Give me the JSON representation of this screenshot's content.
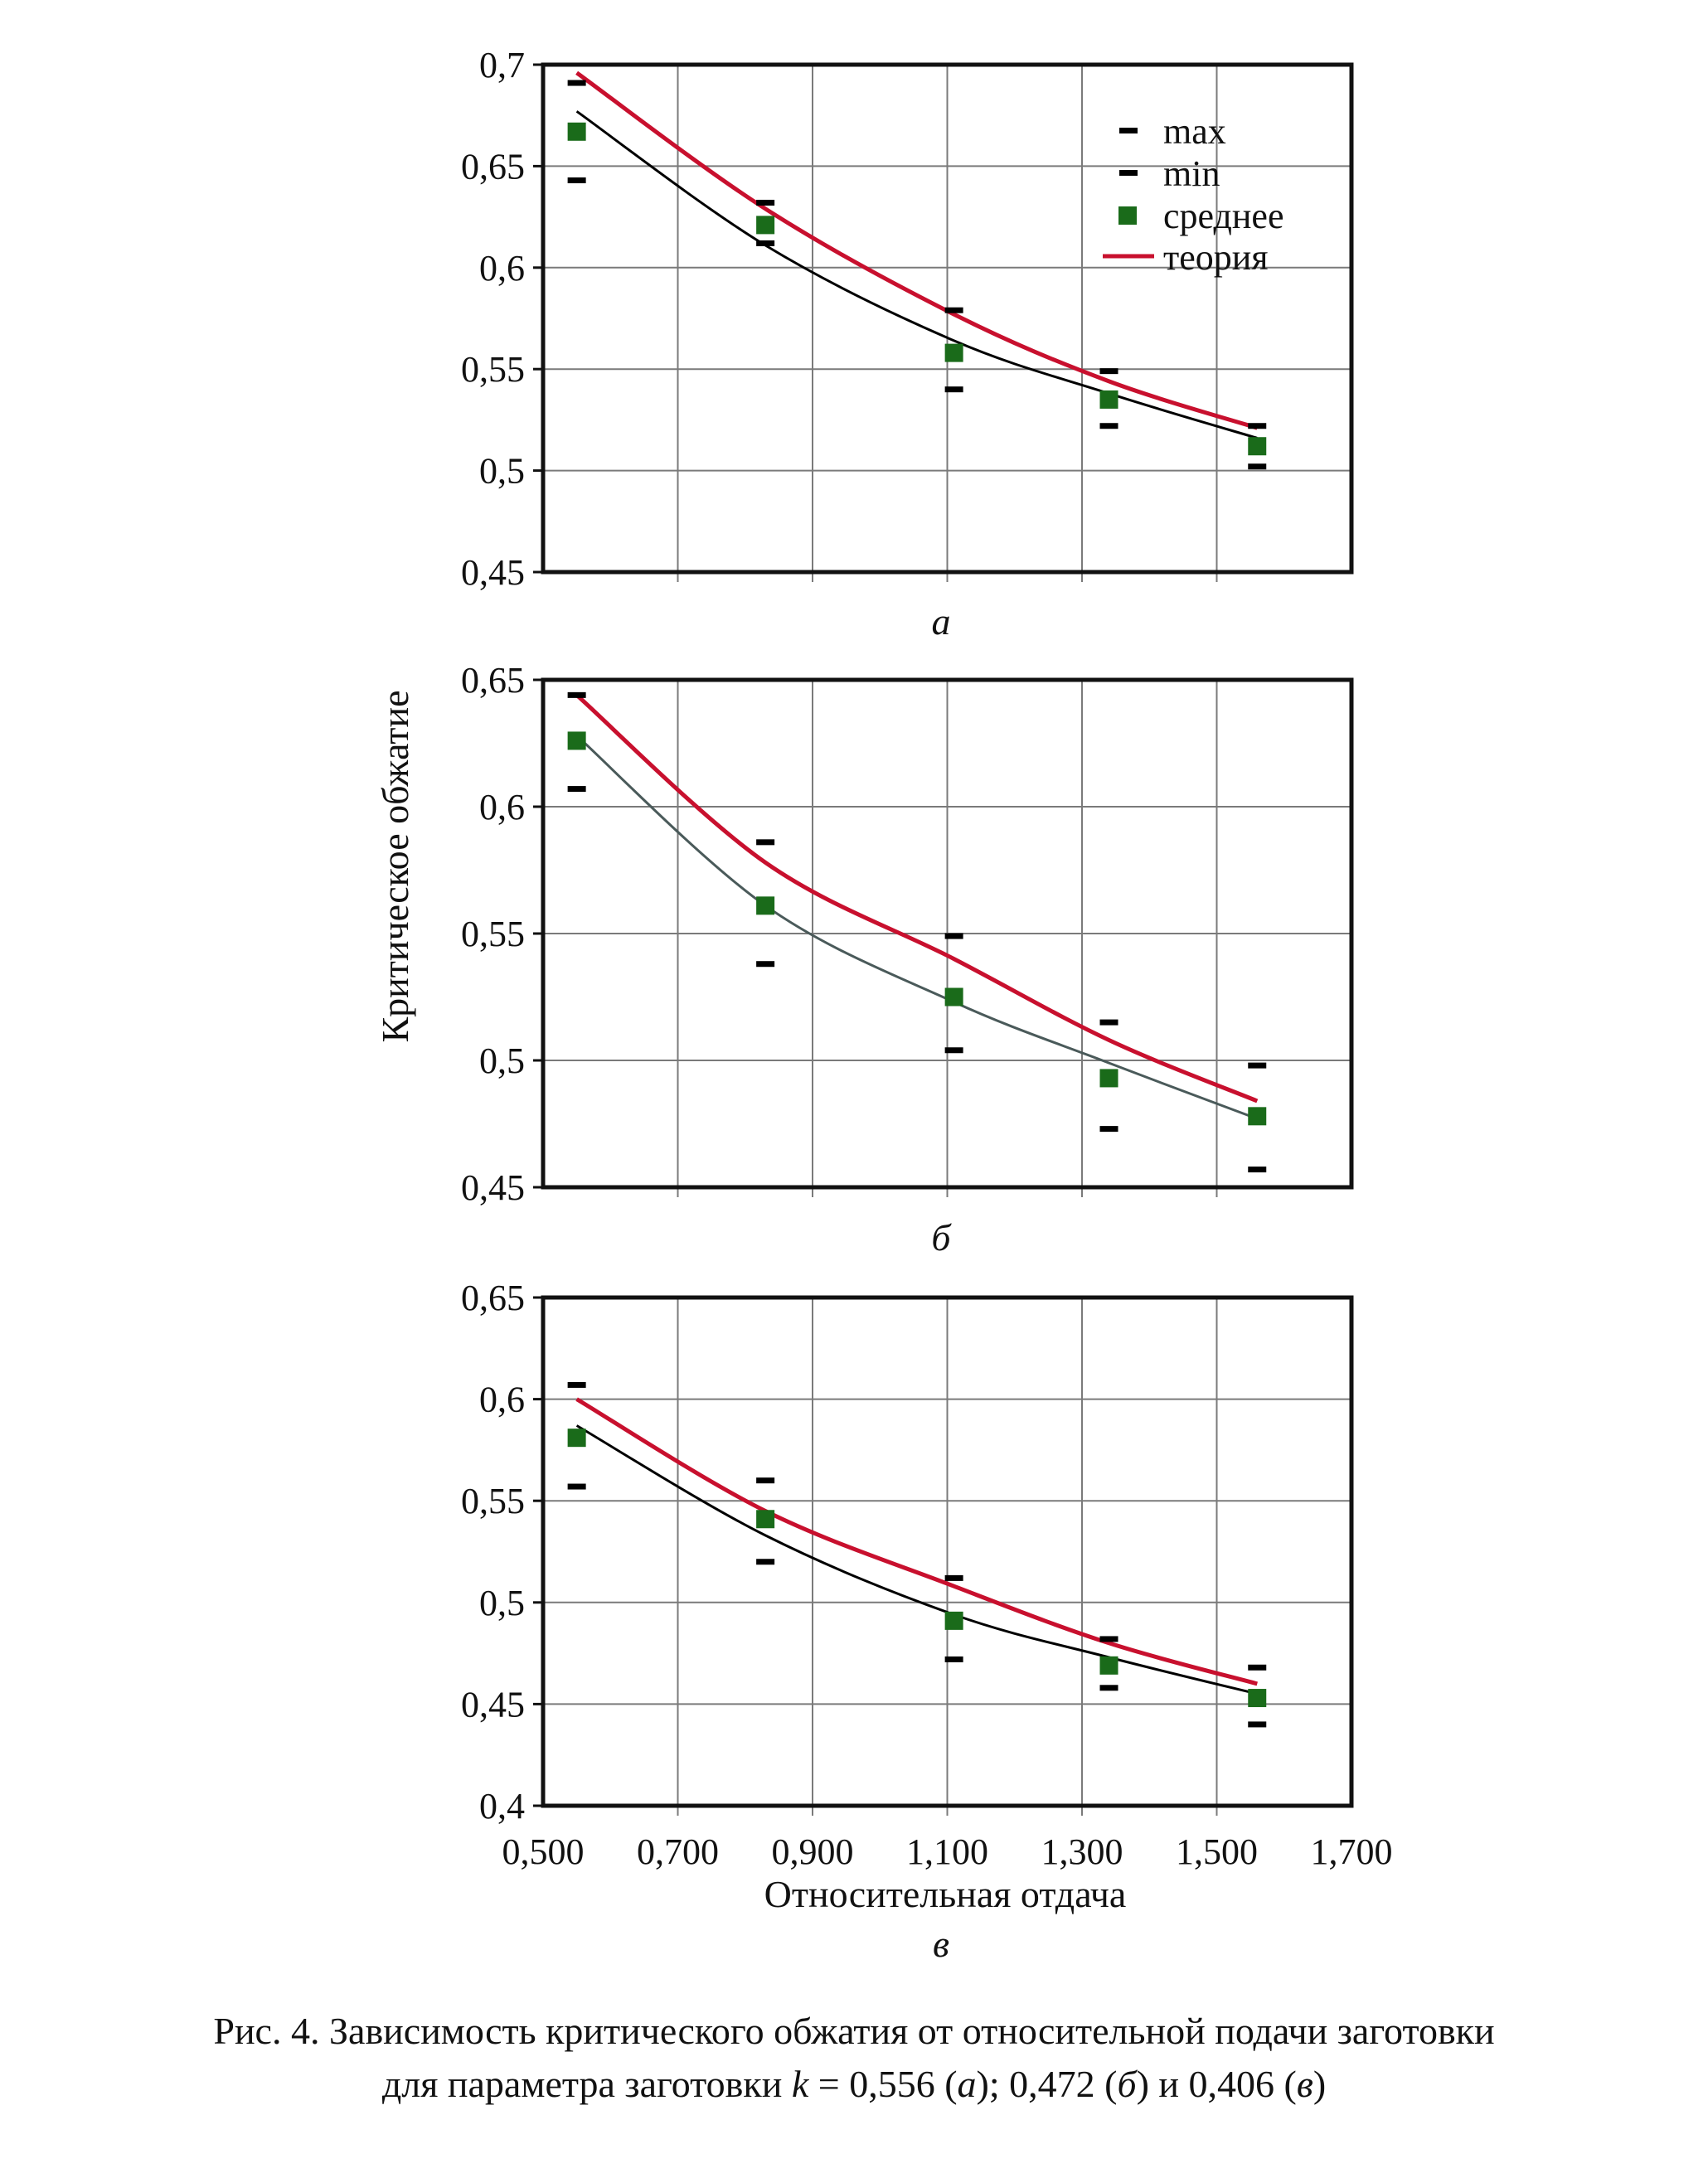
{
  "chart_data": [
    {
      "type": "scatter",
      "panel": "а",
      "x": [
        0.55,
        0.83,
        1.11,
        1.34,
        1.56
      ],
      "ylim": [
        0.45,
        0.7
      ],
      "yticks": [
        "0,45",
        "0,5",
        "0,55",
        "0,6",
        "0,65",
        "0,7"
      ],
      "xlim": [
        0.5,
        1.7
      ],
      "grid": true,
      "legend_position": "top-right",
      "series": [
        {
          "name": "max",
          "marker": "dash",
          "color": "#000000",
          "values": [
            0.691,
            0.632,
            0.579,
            0.549,
            0.522
          ]
        },
        {
          "name": "min",
          "marker": "dash",
          "color": "#000000",
          "values": [
            0.643,
            0.612,
            0.54,
            0.522,
            0.502
          ]
        },
        {
          "name": "среднее",
          "marker": "square",
          "color": "#1a6b1a",
          "values": [
            0.667,
            0.621,
            0.558,
            0.535,
            0.512
          ]
        },
        {
          "name": "теория",
          "marker": "line",
          "color": "#c8102e",
          "values": [
            0.696,
            0.629,
            0.577,
            0.544,
            0.521
          ]
        },
        {
          "name": "",
          "marker": "line",
          "color": "#000000",
          "values": [
            0.677,
            0.611,
            0.564,
            0.538,
            0.516
          ]
        }
      ]
    },
    {
      "type": "scatter",
      "panel": "б",
      "x": [
        0.55,
        0.83,
        1.11,
        1.34,
        1.56
      ],
      "ylim": [
        0.45,
        0.65
      ],
      "yticks": [
        "0,45",
        "0,5",
        "0,55",
        "0,6",
        "0,65"
      ],
      "xlim": [
        0.5,
        1.7
      ],
      "grid": true,
      "series": [
        {
          "name": "max",
          "marker": "dash",
          "color": "#000000",
          "values": [
            0.644,
            0.586,
            0.549,
            0.515,
            0.498
          ]
        },
        {
          "name": "min",
          "marker": "dash",
          "color": "#000000",
          "values": [
            0.607,
            0.538,
            0.504,
            0.473,
            0.457
          ]
        },
        {
          "name": "среднее",
          "marker": "square",
          "color": "#1a6b1a",
          "values": [
            0.626,
            0.561,
            0.525,
            0.493,
            0.478
          ]
        },
        {
          "name": "теория",
          "marker": "line",
          "color": "#c8102e",
          "values": [
            0.644,
            0.578,
            0.54,
            0.508,
            0.484
          ]
        },
        {
          "name": "",
          "marker": "line",
          "color": "#4a5a5a",
          "values": [
            0.628,
            0.561,
            0.523,
            0.499,
            0.477
          ]
        }
      ]
    },
    {
      "type": "scatter",
      "panel": "в",
      "x": [
        0.55,
        0.83,
        1.11,
        1.34,
        1.56
      ],
      "ylim": [
        0.4,
        0.65
      ],
      "yticks": [
        "0,4",
        "0,45",
        "0,5",
        "0,55",
        "0,6",
        "0,65"
      ],
      "xlim": [
        0.5,
        1.7
      ],
      "xticks": [
        "0,500",
        "0,700",
        "0,900",
        "1,100",
        "1,300",
        "1,500",
        "1,700"
      ],
      "xlabel": "Относительная отдача",
      "grid": true,
      "series": [
        {
          "name": "max",
          "marker": "dash",
          "color": "#000000",
          "values": [
            0.607,
            0.56,
            0.512,
            0.482,
            0.468
          ]
        },
        {
          "name": "min",
          "marker": "dash",
          "color": "#000000",
          "values": [
            0.557,
            0.52,
            0.472,
            0.458,
            0.44
          ]
        },
        {
          "name": "среднее",
          "marker": "square",
          "color": "#1a6b1a",
          "values": [
            0.581,
            0.541,
            0.491,
            0.469,
            0.453
          ]
        },
        {
          "name": "теория",
          "marker": "line",
          "color": "#c8102e",
          "values": [
            0.6,
            0.545,
            0.508,
            0.48,
            0.46
          ]
        },
        {
          "name": "",
          "marker": "line",
          "color": "#000000",
          "values": [
            0.587,
            0.533,
            0.494,
            0.473,
            0.455
          ]
        }
      ]
    }
  ],
  "labels": {
    "ylabel": "Критическое обжатие",
    "xlabel": "Относительная отдача",
    "sub_a": "а",
    "sub_b": "б",
    "sub_c": "в"
  },
  "legend": {
    "max": "max",
    "min": "min",
    "mean": "среднее",
    "theory": "теория"
  },
  "caption": {
    "line1": "Рис. 4. Зависимость критического обжатия от относительной подачи заготовки",
    "line2_prefix": "для параметра заготовки",
    "k_symbol": "k",
    "k_eq": " = 0,556 (",
    "a": "а",
    "mid1": "); 0,472 (",
    "b": "б",
    "mid2": ") и 0,406 (",
    "c": "в",
    "end": ")"
  }
}
